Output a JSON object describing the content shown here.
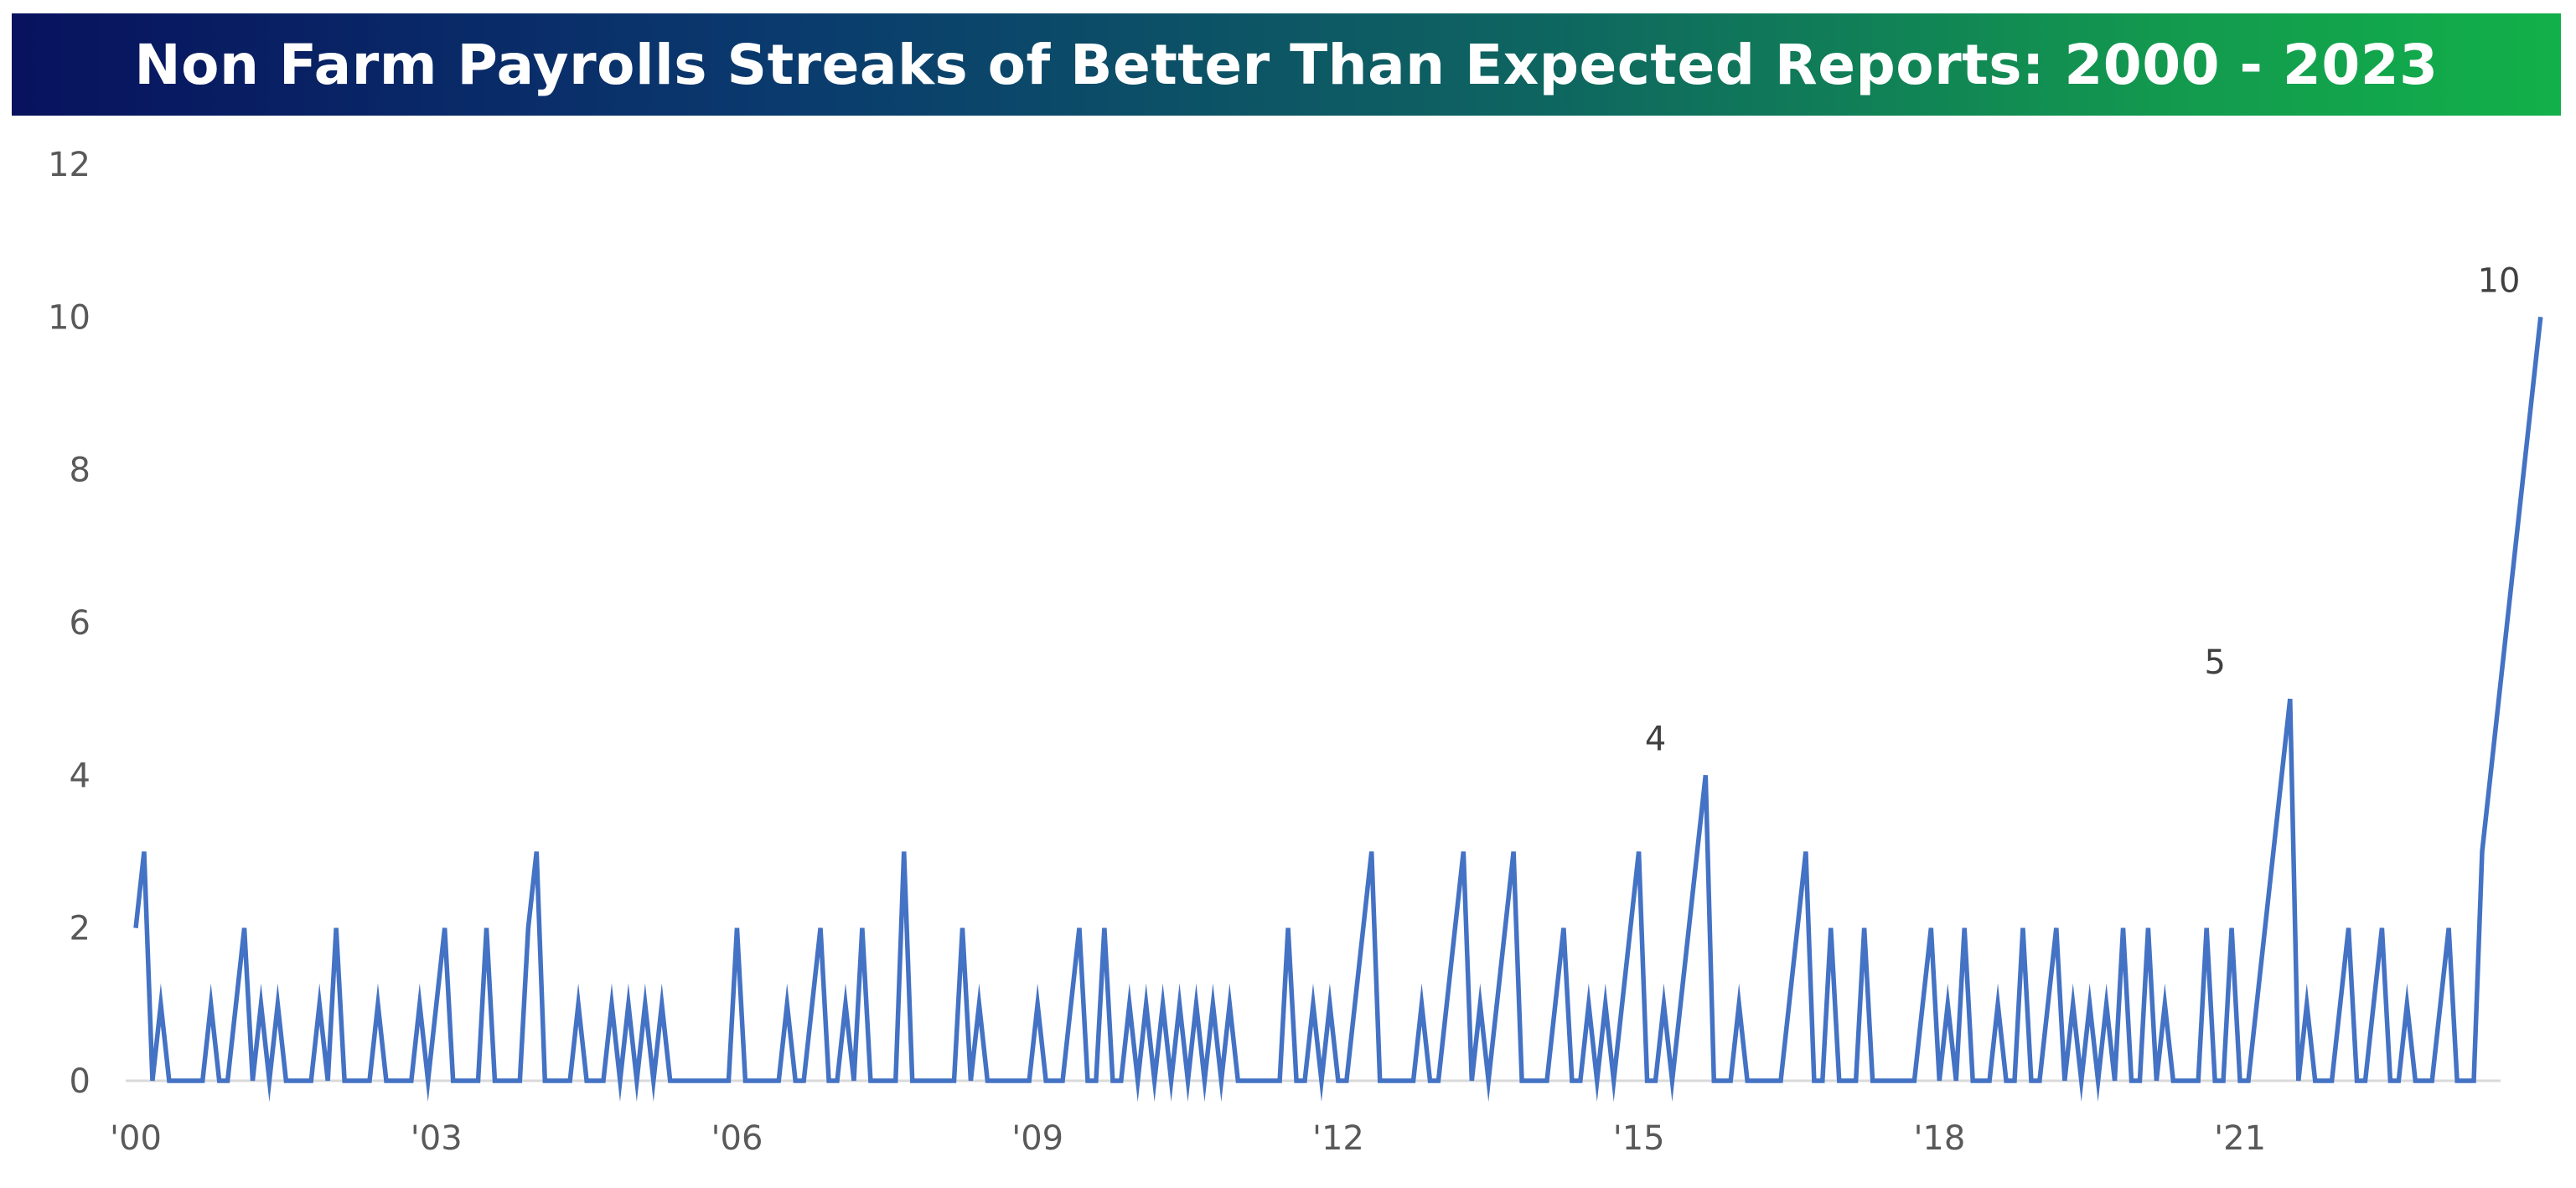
{
  "chart_data": {
    "type": "line",
    "title": "Non Farm Payrolls Streaks of Better Than Expected Reports: 2000 - 2023",
    "xlabel": "",
    "ylabel": "",
    "ylim": [
      0,
      12
    ],
    "yticks": [
      0,
      2,
      4,
      6,
      8,
      10,
      12
    ],
    "xlim": [
      2000.0,
      2023.583
    ],
    "xticks": [
      {
        "value": 2000,
        "label": "'00"
      },
      {
        "value": 2003,
        "label": "'03"
      },
      {
        "value": 2006,
        "label": "'06"
      },
      {
        "value": 2009,
        "label": "'09"
      },
      {
        "value": 2012,
        "label": "'12"
      },
      {
        "value": 2015,
        "label": "'15"
      },
      {
        "value": 2018,
        "label": "'18"
      },
      {
        "value": 2021,
        "label": "'21"
      }
    ],
    "grid": false,
    "line_color": "#4472c4",
    "series": [
      {
        "name": "",
        "start": 2000.0,
        "step": 0.08333,
        "values": [
          2,
          3,
          0,
          1,
          0,
          0,
          0,
          0,
          0,
          1,
          0,
          0,
          1,
          2,
          0,
          1,
          0,
          1,
          0,
          0,
          0,
          0,
          1,
          0,
          2,
          0,
          0,
          0,
          0,
          1,
          0,
          0,
          0,
          0,
          1,
          0,
          1,
          2,
          0,
          0,
          0,
          0,
          2,
          0,
          0,
          0,
          0,
          2,
          3,
          0,
          0,
          0,
          0,
          1,
          0,
          0,
          0,
          1,
          0,
          1,
          0,
          1,
          0,
          1,
          0,
          0,
          0,
          0,
          0,
          0,
          0,
          0,
          2,
          0,
          0,
          0,
          0,
          0,
          1,
          0,
          0,
          1,
          2,
          0,
          0,
          1,
          0,
          2,
          0,
          0,
          0,
          0,
          3,
          0,
          0,
          0,
          0,
          0,
          0,
          2,
          0,
          1,
          0,
          0,
          0,
          0,
          0,
          0,
          1,
          0,
          0,
          0,
          1,
          2,
          0,
          0,
          2,
          0,
          0,
          1,
          0,
          1,
          0,
          1,
          0,
          1,
          0,
          1,
          0,
          1,
          0,
          1,
          0,
          0,
          0,
          0,
          0,
          0,
          2,
          0,
          0,
          1,
          0,
          1,
          0,
          0,
          1,
          2,
          3,
          0,
          0,
          0,
          0,
          0,
          1,
          0,
          0,
          1,
          2,
          3,
          0,
          1,
          0,
          1,
          2,
          3,
          0,
          0,
          0,
          0,
          1,
          2,
          0,
          0,
          1,
          0,
          1,
          0,
          1,
          2,
          3,
          0,
          0,
          1,
          0,
          1,
          2,
          3,
          4,
          0,
          0,
          0,
          1,
          0,
          0,
          0,
          0,
          0,
          1,
          2,
          3,
          0,
          0,
          2,
          0,
          0,
          0,
          2,
          0,
          0,
          0,
          0,
          0,
          0,
          1,
          2,
          0,
          1,
          0,
          2,
          0,
          0,
          0,
          1,
          0,
          0,
          2,
          0,
          0,
          1,
          2,
          0,
          1,
          0,
          1,
          0,
          1,
          0,
          2,
          0,
          0,
          2,
          0,
          1,
          0,
          0,
          0,
          0,
          2,
          0,
          0,
          2,
          0,
          0,
          1,
          2,
          3,
          4,
          5,
          0,
          1,
          0,
          0,
          0,
          1,
          2,
          0,
          0,
          1,
          2,
          0,
          0,
          1,
          0,
          0,
          0,
          1,
          2,
          0,
          0,
          0,
          3,
          4,
          5,
          6,
          7,
          8,
          9,
          10
        ]
      }
    ],
    "annotations": [
      {
        "value": 4,
        "x": 2015.167,
        "y": 4,
        "text": "4"
      },
      {
        "value": 5,
        "x": 2020.75,
        "y": 5,
        "text": "5"
      },
      {
        "value": 10,
        "x": 2023.583,
        "y": 10,
        "text": "10"
      }
    ]
  }
}
